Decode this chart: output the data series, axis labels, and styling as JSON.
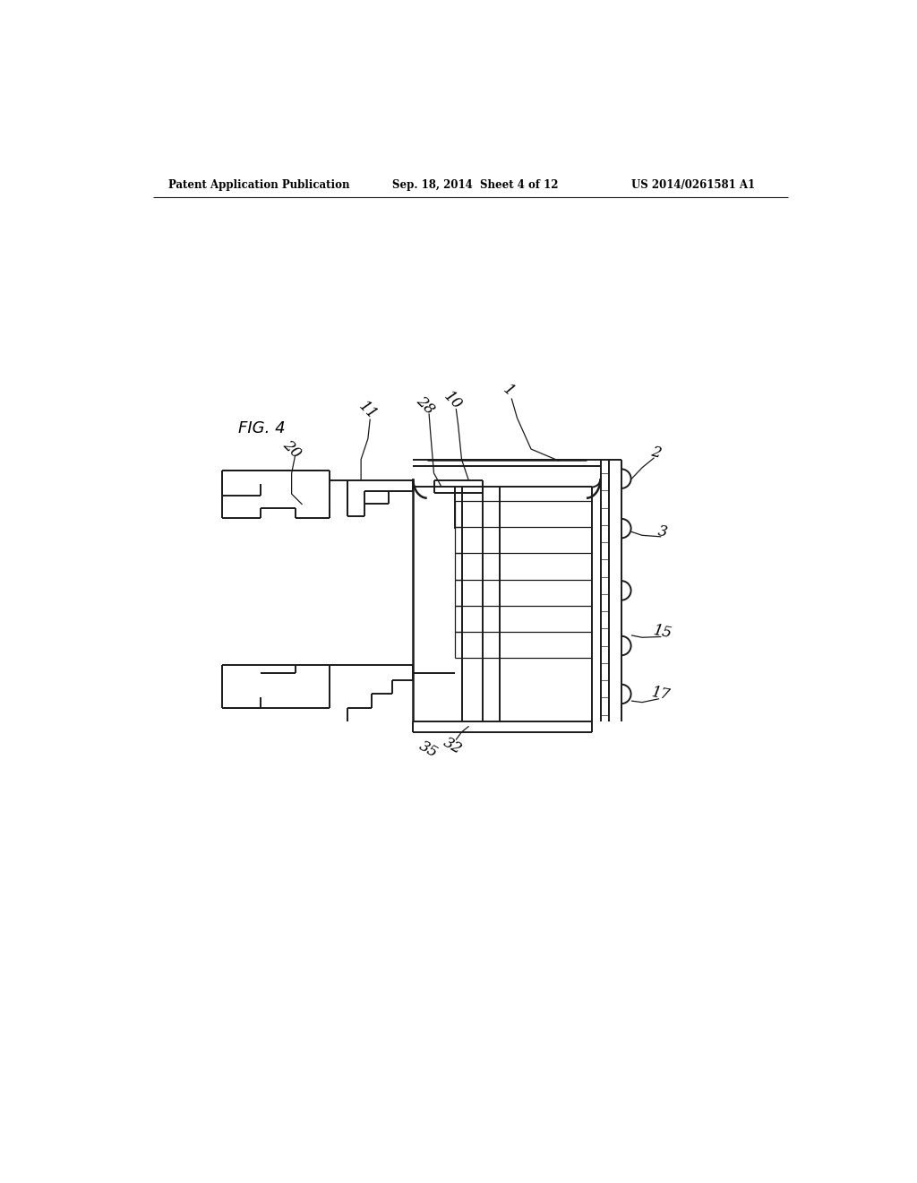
{
  "bg_color": "#ffffff",
  "header_left": "Patent Application Publication",
  "header_center": "Sep. 18, 2014  Sheet 4 of 12",
  "header_right": "US 2014/0261581 A1",
  "fig_label": "FIG. 4",
  "line_color": "#1a1a1a",
  "line_width": 1.4,
  "thin_lw": 0.9,
  "thick_lw": 1.8
}
